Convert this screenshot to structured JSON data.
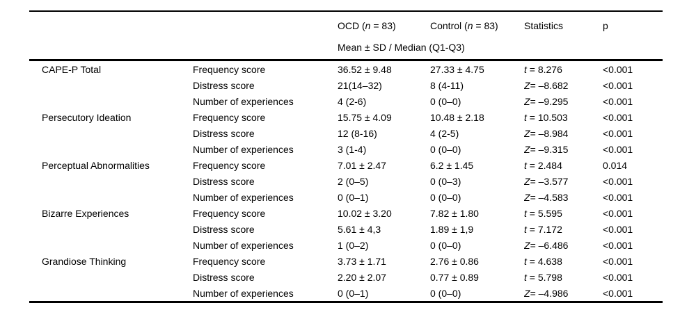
{
  "table": {
    "header": {
      "ocd_prefix": "OCD (",
      "ocd_suffix": " = 83)",
      "control_prefix": "Control (",
      "control_suffix": " = 83)",
      "n_symbol": "n",
      "statistics_label": "Statistics",
      "p_label": "p",
      "scale_note": "Mean ± SD / Median (Q1-Q3)"
    },
    "rows": [
      {
        "group": "CAPE-P Total",
        "group_bold": true,
        "measure": "Frequency score",
        "ocd": "36.52 ± 9.48",
        "control": "27.33 ± 4.75",
        "stat_var": "t",
        "stat_rest": " = 8.276",
        "p": "<0.001"
      },
      {
        "group": "",
        "measure": "Distress score",
        "ocd": "21(14–32)",
        "control": "8 (4-11)",
        "stat_var": "Z",
        "stat_rest": "= –8.682",
        "p": "<0.001"
      },
      {
        "group": "",
        "measure": "Number of experiences",
        "ocd": "4 (2-6)",
        "control": "0 (0–0)",
        "stat_var": "Z",
        "stat_rest": "= –9.295",
        "p": "<0.001"
      },
      {
        "group": "Persecutory Ideation",
        "measure": "Frequency score",
        "ocd": "15.75 ± 4.09",
        "control": "10.48 ± 2.18",
        "stat_var": "t",
        "stat_rest": " = 10.503",
        "p": "<0.001"
      },
      {
        "group": "",
        "measure": "Distress score",
        "ocd": "12 (8-16)",
        "control": "4 (2-5)",
        "stat_var": "Z",
        "stat_rest": "= –8.984",
        "p": "<0.001"
      },
      {
        "group": "",
        "measure": "Number of experiences",
        "ocd": "3 (1-4)",
        "control": "0 (0–0)",
        "stat_var": "Z",
        "stat_rest": "= –9.315",
        "p": "<0.001"
      },
      {
        "group": "Perceptual Abnormalities",
        "measure": "Frequency score",
        "ocd": "7.01 ± 2.47",
        "control": "6.2 ± 1.45",
        "stat_var": "t",
        "stat_rest": " = 2.484",
        "p": "0.014"
      },
      {
        "group": "",
        "measure": "Distress score",
        "ocd": "2 (0–5)",
        "control": "0 (0–3)",
        "stat_var": "Z",
        "stat_rest": "= –3.577",
        "p": "<0.001"
      },
      {
        "group": "",
        "measure": "Number of experiences",
        "ocd": "0 (0–1)",
        "control": "0 (0–0)",
        "stat_var": "Z",
        "stat_rest": "= –4.583",
        "p": "<0.001"
      },
      {
        "group": "Bizarre Experiences",
        "measure": "Frequency score",
        "ocd": "10.02 ± 3.20",
        "control": "7.82 ± 1.80",
        "stat_var": "t",
        "stat_rest": " = 5.595",
        "p": "<0.001"
      },
      {
        "group": "",
        "measure": "Distress score",
        "ocd": "5.61 ± 4,3",
        "control": "1.89 ± 1,9",
        "stat_var": "t",
        "stat_rest": " = 7.172",
        "p": "<0.001"
      },
      {
        "group": "",
        "measure": "Number of experiences",
        "ocd": "1 (0–2)",
        "control": "0 (0–0)",
        "stat_var": "Z",
        "stat_rest": "= –6.486",
        "p": "<0.001"
      },
      {
        "group": "Grandiose Thinking",
        "measure": "Frequency score",
        "ocd": "3.73 ± 1.71",
        "control": "2.76 ± 0.86",
        "stat_var": "t",
        "stat_rest": " = 4.638",
        "p": "<0.001"
      },
      {
        "group": "",
        "measure": "Distress score",
        "ocd": "2.20 ± 2.07",
        "control": "0.77 ± 0.89",
        "stat_var": "t",
        "stat_rest": " = 5.798",
        "p": "<0.001"
      },
      {
        "group": "",
        "measure": "Number of experiences",
        "ocd": "0 (0–1)",
        "control": "0 (0–0)",
        "stat_var": "Z",
        "stat_rest": "= –4.986",
        "p": "<0.001"
      }
    ]
  }
}
